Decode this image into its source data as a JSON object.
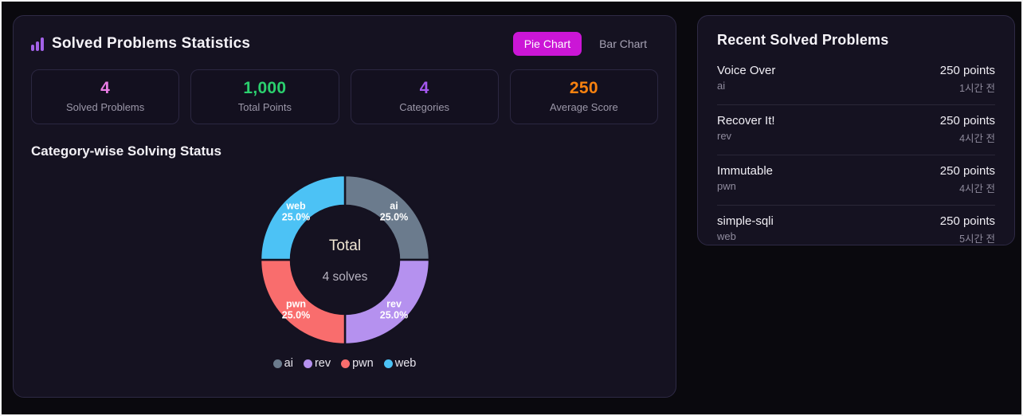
{
  "left_panel": {
    "title": "Solved Problems Statistics",
    "title_icon": "bar-chart-icon",
    "toggle": {
      "pie_label": "Pie Chart",
      "bar_label": "Bar Chart",
      "active": "Pie Chart",
      "active_bg": "#cb16d6"
    },
    "stats": [
      {
        "value": "4",
        "label": "Solved Problems",
        "color": "#e87ce4"
      },
      {
        "value": "1,000",
        "label": "Total Points",
        "color": "#2bd06e"
      },
      {
        "value": "4",
        "label": "Categories",
        "color": "#a558f0"
      },
      {
        "value": "250",
        "label": "Average Score",
        "color": "#f9820f"
      }
    ],
    "section_title": "Category-wise Solving Status"
  },
  "chart_data": {
    "type": "pie",
    "donut": true,
    "categories": [
      "ai",
      "rev",
      "pwn",
      "web"
    ],
    "values": [
      1,
      1,
      1,
      1
    ],
    "percent_labels": [
      "25.0%",
      "25.0%",
      "25.0%",
      "25.0%"
    ],
    "colors": [
      "#6b7b8d",
      "#b591ef",
      "#f96d6d",
      "#4cc2f5"
    ],
    "start_at_top_clockwise": true,
    "center_title": "Total",
    "center_subtitle": "4 solves",
    "legend_position": "bottom",
    "legend": [
      "ai",
      "rev",
      "pwn",
      "web"
    ]
  },
  "recent_panel": {
    "title": "Recent Solved Problems",
    "items": [
      {
        "name": "Voice Over",
        "category": "ai",
        "points": "250 points",
        "time": "1시간 전"
      },
      {
        "name": "Recover It!",
        "category": "rev",
        "points": "250 points",
        "time": "4시간 전"
      },
      {
        "name": "Immutable",
        "category": "pwn",
        "points": "250 points",
        "time": "4시간 전"
      },
      {
        "name": "simple-sqli",
        "category": "web",
        "points": "250 points",
        "time": "5시간 전"
      }
    ]
  },
  "colors": {
    "page_bg": "#0a090e",
    "frame_border": "#f5f5f5",
    "card_bg": "#151221",
    "card_border": "#2e2a45",
    "muted_text": "#9b97a8",
    "accent": "#cb16d6",
    "title_icon": "#a362e8"
  }
}
